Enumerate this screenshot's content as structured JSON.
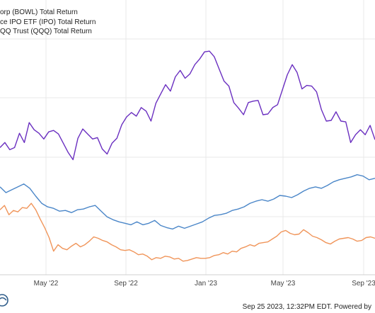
{
  "chart_data": {
    "type": "line",
    "title": "",
    "xlabel": "",
    "ylabel": "",
    "x_ticks": [
      "May '22",
      "Sep '22",
      "Jan '23",
      "May '23",
      "Sep '23"
    ],
    "grid": true,
    "legend_position": "top-left",
    "series": [
      {
        "name": "orp (BOWL) Total Return",
        "color": "#6a2fc0",
        "values": [
          0.73,
          0.8,
          0.7,
          0.73,
          0.93,
          0.8,
          1.08,
          0.98,
          0.93,
          0.85,
          0.95,
          0.97,
          0.92,
          0.79,
          0.66,
          0.56,
          0.86,
          0.99,
          0.92,
          0.85,
          0.87,
          0.71,
          0.64,
          0.79,
          0.86,
          1.05,
          1.16,
          1.22,
          1.17,
          1.29,
          1.24,
          1.1,
          1.35,
          1.48,
          1.61,
          1.52,
          1.72,
          1.81,
          1.7,
          1.76,
          1.89,
          1.97,
          2.07,
          2.08,
          2.0,
          1.83,
          1.66,
          1.59,
          1.36,
          1.28,
          1.19,
          1.36,
          1.38,
          1.39,
          1.19,
          1.2,
          1.29,
          1.33,
          1.54,
          1.75,
          1.89,
          1.78,
          1.55,
          1.6,
          1.59,
          1.51,
          1.26,
          1.1,
          1.11,
          1.23,
          1.1,
          1.09,
          0.8,
          0.91,
          0.98,
          0.91,
          1.04,
          0.84
        ]
      },
      {
        "name": "ce IPO ETF (IPO) Total Return",
        "color": "#4a86c8",
        "values": [
          0.18,
          0.1,
          0.14,
          0.18,
          0.22,
          0.16,
          0.05,
          -0.05,
          -0.1,
          -0.12,
          -0.16,
          -0.15,
          -0.18,
          -0.14,
          -0.13,
          -0.1,
          -0.08,
          -0.16,
          -0.24,
          -0.28,
          -0.31,
          -0.33,
          -0.35,
          -0.31,
          -0.35,
          -0.33,
          -0.29,
          -0.36,
          -0.39,
          -0.41,
          -0.37,
          -0.4,
          -0.37,
          -0.34,
          -0.31,
          -0.26,
          -0.22,
          -0.21,
          -0.19,
          -0.15,
          -0.13,
          -0.1,
          -0.05,
          -0.02,
          0.0,
          -0.02,
          0.01,
          0.06,
          0.05,
          0.03,
          0.07,
          0.12,
          0.16,
          0.18,
          0.16,
          0.2,
          0.25,
          0.28,
          0.3,
          0.32,
          0.35,
          0.33,
          0.28,
          0.3
        ]
      },
      {
        "name": "QQ Trust (QQQ) Total Return",
        "color": "#f0955a",
        "values": [
          -0.14,
          -0.08,
          -0.21,
          -0.15,
          -0.17,
          -0.11,
          -0.12,
          -0.05,
          -0.14,
          -0.27,
          -0.39,
          -0.53,
          -0.72,
          -0.63,
          -0.68,
          -0.7,
          -0.65,
          -0.61,
          -0.66,
          -0.63,
          -0.58,
          -0.52,
          -0.54,
          -0.57,
          -0.59,
          -0.63,
          -0.66,
          -0.7,
          -0.71,
          -0.7,
          -0.73,
          -0.77,
          -0.76,
          -0.79,
          -0.84,
          -0.81,
          -0.82,
          -0.79,
          -0.8,
          -0.83,
          -0.82,
          -0.86,
          -0.85,
          -0.83,
          -0.81,
          -0.82,
          -0.82,
          -0.81,
          -0.78,
          -0.77,
          -0.74,
          -0.76,
          -0.72,
          -0.73,
          -0.68,
          -0.66,
          -0.63,
          -0.65,
          -0.61,
          -0.6,
          -0.59,
          -0.55,
          -0.51,
          -0.45,
          -0.43,
          -0.47,
          -0.49,
          -0.48,
          -0.42,
          -0.46,
          -0.51,
          -0.53,
          -0.56,
          -0.6,
          -0.62,
          -0.58,
          -0.55,
          -0.54,
          -0.53,
          -0.55,
          -0.58,
          -0.57,
          -0.53,
          -0.52,
          -0.54
        ]
      }
    ]
  },
  "footer": {
    "timestamp": "Sep 25 2023, 12:32PM EDT.",
    "powered_by": "Powered by"
  },
  "logo_icon": "ycharts-logo-icon"
}
